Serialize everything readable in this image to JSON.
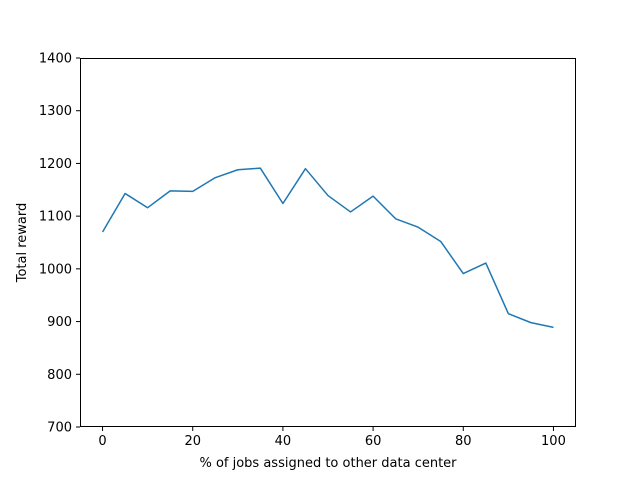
{
  "chart_data": {
    "type": "line",
    "title": "",
    "xlabel": "% of jobs assigned to other data center",
    "ylabel": "Total reward",
    "xlim": [
      -5,
      105
    ],
    "ylim": [
      700,
      1400
    ],
    "xticks": [
      0,
      20,
      40,
      60,
      80,
      100
    ],
    "yticks": [
      700,
      800,
      900,
      1000,
      1100,
      1200,
      1300,
      1400
    ],
    "grid": false,
    "line_color": "#1f77b4",
    "series": [
      {
        "x": [
          0,
          5,
          10,
          15,
          20,
          25,
          30,
          35,
          40,
          45,
          50,
          55,
          60,
          65,
          70,
          75,
          80,
          85,
          90,
          95,
          100
        ],
        "y": [
          1070,
          1143,
          1116,
          1148,
          1147,
          1173,
          1188,
          1191,
          1124,
          1190,
          1139,
          1108,
          1138,
          1095,
          1079,
          1052,
          991,
          1011,
          915,
          898,
          889
        ]
      }
    ]
  }
}
